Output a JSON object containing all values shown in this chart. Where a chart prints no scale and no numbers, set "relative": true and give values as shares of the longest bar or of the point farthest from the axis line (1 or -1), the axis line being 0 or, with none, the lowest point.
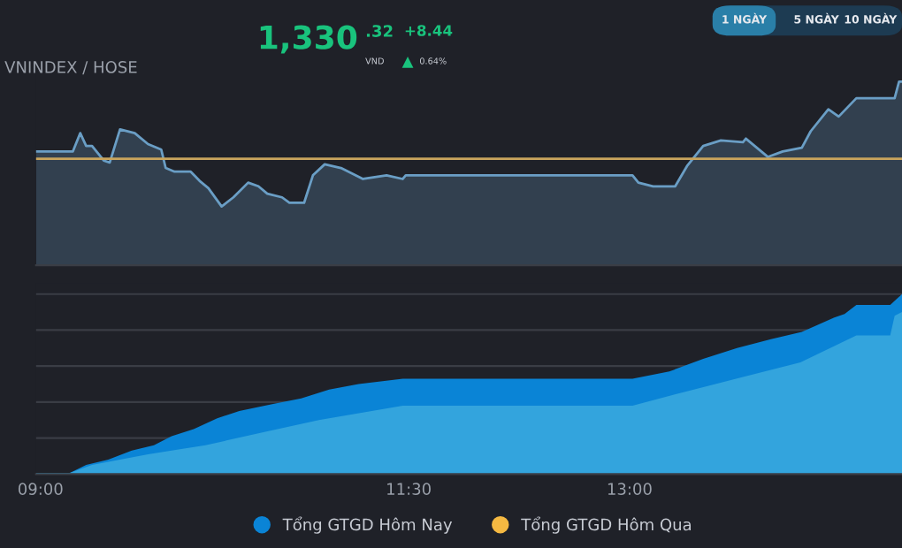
{
  "chart_data": [
    {
      "type": "area",
      "title": "VNINDEX / HOSE",
      "relative": true,
      "grid": false,
      "legend": false,
      "annotations": [
        "1,330",
        ".32",
        "VND",
        "+8.44",
        "0.64%",
        "1 NGÀY",
        "5 NGÀY",
        "10 NGÀY"
      ],
      "xlim": [
        8.97,
        14.85
      ],
      "series": [
        {
          "color": "#6a9ec5",
          "x": [
            8.97,
            9.22,
            9.27,
            9.31,
            9.35,
            9.43,
            9.47,
            9.54,
            9.64,
            9.73,
            9.82,
            9.85,
            9.91,
            10.02,
            10.08,
            10.14,
            10.23,
            10.31,
            10.41,
            10.48,
            10.54,
            10.64,
            10.69,
            10.79,
            10.85,
            10.93,
            11.04,
            11.19,
            11.35,
            11.46,
            11.48,
            13.02,
            13.06,
            13.16,
            13.31,
            13.39,
            13.5,
            13.62,
            13.77,
            13.79,
            13.94,
            14.04,
            14.17,
            14.23,
            14.35,
            14.42,
            14.54,
            14.8,
            14.83,
            14.85
          ],
          "values": [
            0.62,
            0.62,
            0.72,
            0.65,
            0.65,
            0.57,
            0.56,
            0.74,
            0.72,
            0.66,
            0.63,
            0.53,
            0.51,
            0.51,
            0.46,
            0.42,
            0.32,
            0.37,
            0.45,
            0.43,
            0.39,
            0.37,
            0.34,
            0.34,
            0.49,
            0.55,
            0.53,
            0.47,
            0.49,
            0.47,
            0.49,
            0.49,
            0.45,
            0.43,
            0.43,
            0.54,
            0.65,
            0.68,
            0.67,
            0.69,
            0.59,
            0.62,
            0.64,
            0.73,
            0.85,
            0.81,
            0.91,
            0.91,
            1.0,
            1.0
          ]
        }
      ],
      "ref_lines": [
        {
          "axis": "y",
          "value": 0.58,
          "color": "#c9a45c"
        }
      ]
    },
    {
      "type": "area",
      "relative": true,
      "grid": "y",
      "legend": "bottom",
      "xlim": [
        8.97,
        14.85
      ],
      "xticks": [
        {
          "value": 9,
          "label": "09:00"
        },
        {
          "value": 11.5,
          "label": "11:30"
        },
        {
          "value": 13,
          "label": "13:00"
        }
      ],
      "series": [
        {
          "name": "Tổng GTGD Hôm Nay",
          "color": "#0a84d6",
          "x": [
            8.97,
            9.2,
            9.31,
            9.46,
            9.62,
            9.77,
            9.89,
            10.04,
            10.2,
            10.35,
            10.58,
            10.77,
            10.96,
            11.16,
            11.46,
            13.02,
            13.27,
            13.5,
            13.73,
            13.96,
            14.17,
            14.39,
            14.46,
            14.54,
            14.77,
            14.85
          ],
          "values": [
            0.007,
            0.007,
            0.05,
            0.08,
            0.13,
            0.16,
            0.21,
            0.25,
            0.31,
            0.35,
            0.39,
            0.42,
            0.47,
            0.5,
            0.53,
            0.53,
            0.57,
            0.64,
            0.7,
            0.75,
            0.79,
            0.87,
            0.89,
            0.94,
            0.94,
            1.0
          ]
        },
        {
          "color": "#33a4dd",
          "x": [
            8.97,
            9.2,
            9.35,
            9.73,
            10.12,
            10.5,
            10.89,
            11.46,
            13.02,
            13.39,
            13.77,
            14.16,
            14.54,
            14.77,
            14.8,
            14.85
          ],
          "values": [
            0.007,
            0.007,
            0.05,
            0.11,
            0.16,
            0.23,
            0.3,
            0.38,
            0.38,
            0.46,
            0.54,
            0.62,
            0.77,
            0.77,
            0.88,
            0.9
          ]
        },
        {
          "name": "Tổng GTGD Hôm Qua",
          "color": "#f5b942"
        }
      ]
    }
  ]
}
